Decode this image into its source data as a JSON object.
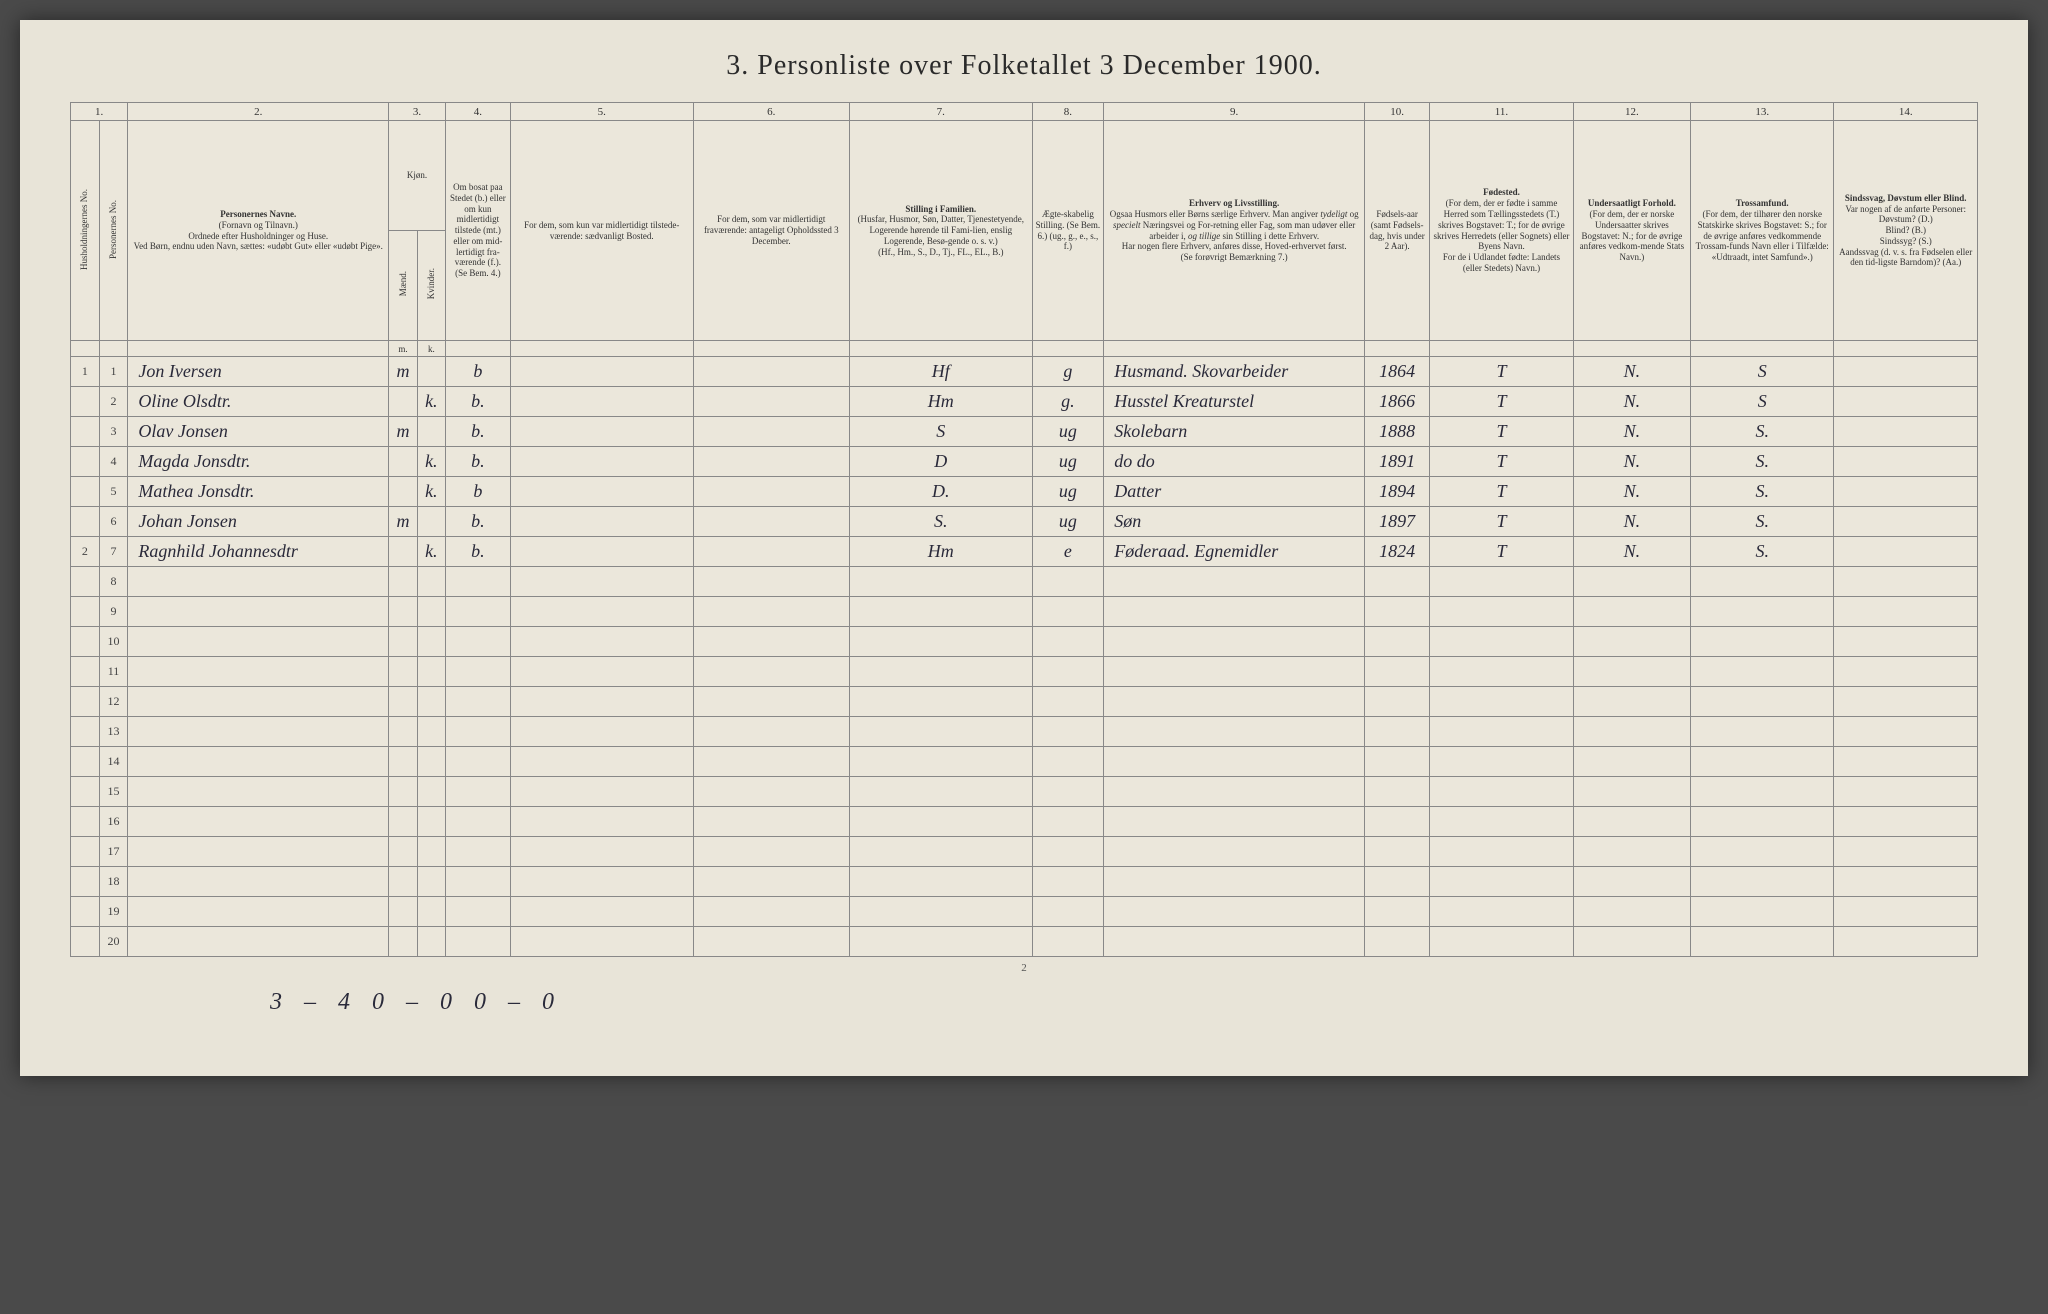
{
  "title": "3. Personliste over Folketallet 3 December 1900.",
  "page_number": "2",
  "columns": {
    "nums": [
      "1.",
      "2.",
      "3.",
      "4.",
      "5.",
      "6.",
      "7.",
      "8.",
      "9.",
      "10.",
      "11.",
      "12.",
      "13.",
      "14."
    ],
    "household": "Husholdningernes No.",
    "person": "Personernes No.",
    "name": "Personernes Navne.\n(Fornavn og Tilnavn.)\nOrdnede efter Husholdninger og Huse.\nVed Børn, endnu uden Navn, sættes: «udøbt Gut» eller «udøbt Pige».",
    "sex": "Kjøn.",
    "sex_m": "Mænd.",
    "sex_k": "Kvinder.",
    "resident": "Om bosat paa Stedet (b.) eller om kun midlertidigt tilstede (mt.) eller om mid-lertidigt fra-værende (f.).\n(Se Bem. 4.)",
    "temp_present": "For dem, som kun var midlertidigt tilstede-værende:\nsædvanligt Bosted.",
    "temp_absent": "For dem, som var midlertidigt fraværende:\nantageligt Opholdssted 3 December.",
    "position": "Stilling i Familien.\n(Husfar, Husmor, Søn, Datter, Tjenestetyende, Logerende hørende til Fami-lien, enslig Logerende, Besø-gende o. s. v.)\n(Hf., Hm., S., D., Tj., FL., EL., B.)",
    "marital": "Ægte-skabelig Stilling.\n(Se Bem. 6.)\n(ug., g., e., s., f.)",
    "occupation": "Erhverv og Livsstilling.\nOgsaa Husmors eller Børns særlige Erhverv. Man angiver tydeligt og specielt Næringsvei og For-retning eller Fag, som man udøver eller arbeider i, og tillige sin Stilling i dette Erhverv.\nHar nogen flere Erhverv, anføres disse, Hoved-erhvervet først.\n(Se forøvrigt Bemærkning 7.)",
    "birth": "Fødsels-aar\n(samt Fødsels-dag, hvis under 2 Aar).",
    "birthplace": "Fødested.\n(For dem, der er fødte i samme Herred som Tællingsstedets (T.) skrives Bogstavet: T.; for de øvrige skrives Herredets (eller Sognets) eller Byens Navn.\nFor de i Udlandet fødte: Landets (eller Stedets) Navn.)",
    "nationality": "Undersaatligt Forhold.\n(For dem, der er norske Undersaatter skrives Bogstavet: N.; for de øvrige anføres vedkom-mende Stats Navn.)",
    "religion": "Trossamfund.\n(For dem, der tilhører den norske Statskirke skrives Bogstavet: S.; for de øvrige anføres vedkommende Trossam-funds Navn eller i Tilfælde: «Udtraadt, intet Samfund».)",
    "disability": "Sindssvag, Døvstum eller Blind.\nVar nogen af de anførte Personer:\nDøvstum? (D.)\nBlind? (B.)\nSindssyg? (S.)\nAandssvag (d. v. s. fra Fødselen eller den tid-ligste Barndom)? (Aa.)"
  },
  "sub": {
    "m": "m.",
    "k": "k."
  },
  "rows": [
    {
      "household": "1",
      "person": "1",
      "name": "Jon Iversen",
      "sex_m": "m",
      "sex_k": "",
      "resident": "b",
      "temp_present": "",
      "temp_absent": "",
      "position": "Hf",
      "marital": "g",
      "occupation": "Husmand. Skovarbeider",
      "birth": "1864",
      "birthplace": "T",
      "nationality": "N.",
      "religion": "S",
      "disability": ""
    },
    {
      "household": "",
      "person": "2",
      "name": "Oline Olsdtr.",
      "sex_m": "",
      "sex_k": "k.",
      "resident": "b.",
      "temp_present": "",
      "temp_absent": "",
      "position": "Hm",
      "marital": "g.",
      "occupation": "Husstel Kreaturstel",
      "birth": "1866",
      "birthplace": "T",
      "nationality": "N.",
      "religion": "S",
      "disability": ""
    },
    {
      "household": "",
      "person": "3",
      "name": "Olav Jonsen",
      "sex_m": "m",
      "sex_k": "",
      "resident": "b.",
      "temp_present": "",
      "temp_absent": "",
      "position": "S",
      "marital": "ug",
      "occupation": "Skolebarn",
      "birth": "1888",
      "birthplace": "T",
      "nationality": "N.",
      "religion": "S.",
      "disability": ""
    },
    {
      "household": "",
      "person": "4",
      "name": "Magda Jonsdtr.",
      "sex_m": "",
      "sex_k": "k.",
      "resident": "b.",
      "temp_present": "",
      "temp_absent": "",
      "position": "D",
      "marital": "ug",
      "occupation": "do do",
      "birth": "1891",
      "birthplace": "T",
      "nationality": "N.",
      "religion": "S.",
      "disability": ""
    },
    {
      "household": "",
      "person": "5",
      "name": "Mathea Jonsdtr.",
      "sex_m": "",
      "sex_k": "k.",
      "resident": "b",
      "temp_present": "",
      "temp_absent": "",
      "position": "D.",
      "marital": "ug",
      "occupation": "Datter",
      "birth": "1894",
      "birthplace": "T",
      "nationality": "N.",
      "religion": "S.",
      "disability": ""
    },
    {
      "household": "",
      "person": "6",
      "name": "Johan Jonsen",
      "sex_m": "m",
      "sex_k": "",
      "resident": "b.",
      "temp_present": "",
      "temp_absent": "",
      "position": "S.",
      "marital": "ug",
      "occupation": "Søn",
      "birth": "1897",
      "birthplace": "T",
      "nationality": "N.",
      "religion": "S.",
      "disability": ""
    },
    {
      "household": "2",
      "person": "7",
      "name": "Ragnhild Johannesdtr",
      "sex_m": "",
      "sex_k": "k.",
      "resident": "b.",
      "temp_present": "",
      "temp_absent": "",
      "position": "Hm",
      "marital": "e",
      "occupation": "Føderaad. Egnemidler",
      "birth": "1824",
      "birthplace": "T",
      "nationality": "N.",
      "religion": "S.",
      "disability": ""
    }
  ],
  "empty_rows": [
    "8",
    "9",
    "10",
    "11",
    "12",
    "13",
    "14",
    "15",
    "16",
    "17",
    "18",
    "19",
    "20"
  ],
  "footer": "3 – 4   0 – 0   0 – 0",
  "colors": {
    "page_bg": "#e8e4d8",
    "table_bg": "#ebe7db",
    "border": "#888888",
    "text": "#333333",
    "handwriting": "#2a2a3a"
  }
}
